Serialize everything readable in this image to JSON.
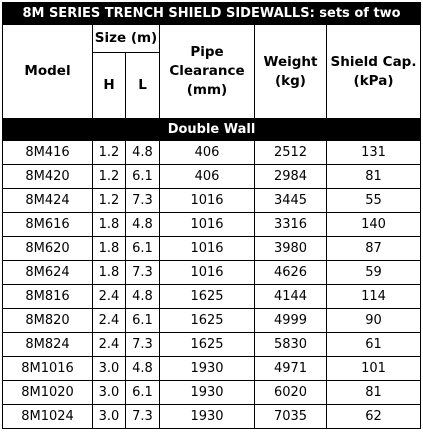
{
  "title": "8M SERIES TRENCH SHIELD SIDEWALLS: sets of two",
  "columns": {
    "model": "Model",
    "size": "Size (m)",
    "h": "H",
    "l": "L",
    "pipe": "Pipe Clearance (mm)",
    "weight": "Weight (kg)",
    "shield": "Shield Cap. (kPa)"
  },
  "section": "Double Wall",
  "rows": [
    [
      "8M416",
      "1.2",
      "4.8",
      "406",
      "2512",
      "131"
    ],
    [
      "8M420",
      "1.2",
      "6.1",
      "406",
      "2984",
      "81"
    ],
    [
      "8M424",
      "1.2",
      "7.3",
      "1016",
      "3445",
      "55"
    ],
    [
      "8M616",
      "1.8",
      "4.8",
      "1016",
      "3316",
      "140"
    ],
    [
      "8M620",
      "1.8",
      "6.1",
      "1016",
      "3980",
      "87"
    ],
    [
      "8M624",
      "1.8",
      "7.3",
      "1016",
      "4626",
      "59"
    ],
    [
      "8M816",
      "2.4",
      "4.8",
      "1625",
      "4144",
      "114"
    ],
    [
      "8M820",
      "2.4",
      "6.1",
      "1625",
      "4999",
      "90"
    ],
    [
      "8M824",
      "2.4",
      "7.3",
      "1625",
      "5830",
      "61"
    ],
    [
      "8M1016",
      "3.0",
      "4.8",
      "1930",
      "4971",
      "101"
    ],
    [
      "8M1020",
      "3.0",
      "6.1",
      "1930",
      "6020",
      "81"
    ],
    [
      "8M1024",
      "3.0",
      "7.3",
      "1930",
      "7035",
      "62"
    ]
  ]
}
